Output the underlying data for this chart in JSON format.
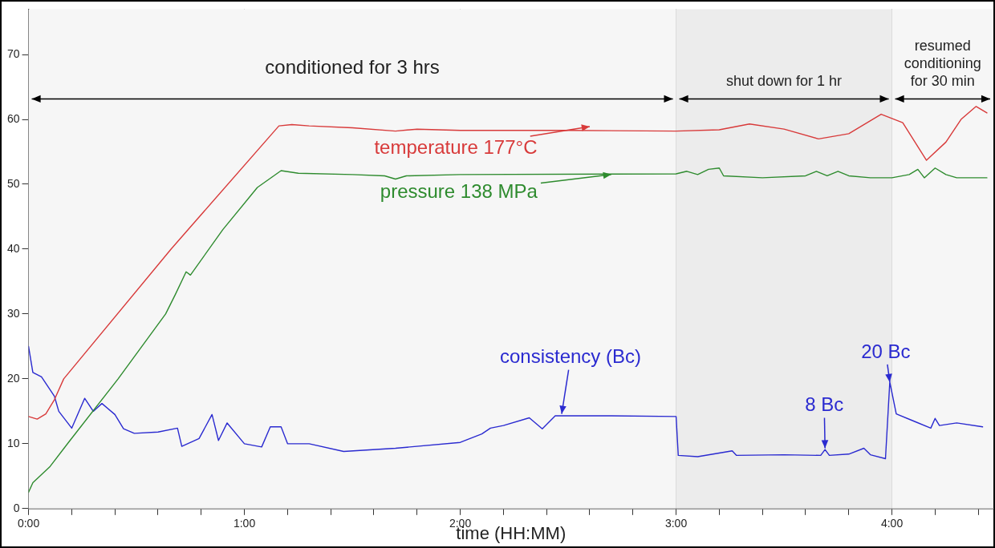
{
  "chart_data": {
    "type": "line",
    "xlabel": "time (HH:MM)",
    "xlim": [
      0,
      4.47
    ],
    "ylim": [
      0,
      77
    ],
    "xticks": [
      {
        "value": 0,
        "label": "0:00"
      },
      {
        "value": 0.2,
        "label": null
      },
      {
        "value": 0.4,
        "label": null
      },
      {
        "value": 0.6,
        "label": null
      },
      {
        "value": 0.8,
        "label": null
      },
      {
        "value": 1,
        "label": "1:00"
      },
      {
        "value": 1.2,
        "label": null
      },
      {
        "value": 1.4,
        "label": null
      },
      {
        "value": 1.6,
        "label": null
      },
      {
        "value": 1.8,
        "label": null
      },
      {
        "value": 2,
        "label": "2:00"
      },
      {
        "value": 2.2,
        "label": null
      },
      {
        "value": 2.4,
        "label": null
      },
      {
        "value": 2.6,
        "label": null
      },
      {
        "value": 2.8,
        "label": null
      },
      {
        "value": 3,
        "label": "3:00"
      },
      {
        "value": 3.2,
        "label": null
      },
      {
        "value": 3.4,
        "label": null
      },
      {
        "value": 3.6,
        "label": null
      },
      {
        "value": 3.8,
        "label": null
      },
      {
        "value": 4,
        "label": "4:00"
      },
      {
        "value": 4.2,
        "label": null
      },
      {
        "value": 4.4,
        "label": null
      }
    ],
    "yticks": [
      0,
      10,
      20,
      30,
      40,
      50,
      60,
      70
    ],
    "grid": true,
    "legend": false,
    "marker": "none",
    "line_style": "solid",
    "series": [
      {
        "color": "#d83a3a",
        "x": [
          0,
          0.04,
          0.08,
          0.12,
          0.163,
          0.66,
          1.16,
          1.22,
          1.3,
          1.5,
          1.7,
          1.8,
          2.0,
          2.5,
          3.0,
          3.2,
          3.34,
          3.5,
          3.66,
          3.8,
          3.95,
          4.05,
          4.16,
          4.25,
          4.32,
          4.39,
          4.44
        ],
        "values": [
          14.2,
          13.8,
          14.6,
          16.8,
          20,
          40,
          59,
          59.2,
          59,
          58.7,
          58.2,
          58.5,
          58.3,
          58.3,
          58.2,
          58.4,
          59.3,
          58.5,
          57,
          57.8,
          60.8,
          59.5,
          53.7,
          56.5,
          60,
          62,
          61
        ]
      },
      {
        "color": "#2e8b2e",
        "x": [
          0,
          0.02,
          0.1,
          0.185,
          0.415,
          0.635,
          0.68,
          0.73,
          0.75,
          0.9,
          1.06,
          1.17,
          1.25,
          1.5,
          1.65,
          1.7,
          1.75,
          2.0,
          3.0,
          3.05,
          3.1,
          3.15,
          3.2,
          3.22,
          3.4,
          3.6,
          3.65,
          3.7,
          3.75,
          3.8,
          3.9,
          4.0,
          4.08,
          4.12,
          4.15,
          4.2,
          4.25,
          4.3,
          4.44
        ],
        "values": [
          2.5,
          4,
          6.5,
          10.2,
          20,
          30,
          33,
          36.5,
          36,
          43,
          49.5,
          52.1,
          51.7,
          51.5,
          51.3,
          50.8,
          51.3,
          51.5,
          51.6,
          52,
          51.5,
          52.3,
          52.5,
          51.3,
          51,
          51.3,
          52,
          51.3,
          52,
          51.3,
          51,
          51,
          51.5,
          52.3,
          51,
          52.5,
          51.5,
          51,
          51
        ]
      },
      {
        "color": "#2a2ad0",
        "x": [
          0,
          0.02,
          0.06,
          0.12,
          0.14,
          0.2,
          0.26,
          0.3,
          0.34,
          0.4,
          0.44,
          0.49,
          0.6,
          0.69,
          0.71,
          0.79,
          0.85,
          0.88,
          0.92,
          1.0,
          1.08,
          1.12,
          1.17,
          1.2,
          1.3,
          1.46,
          1.7,
          2.0,
          2.1,
          2.14,
          2.2,
          2.32,
          2.38,
          2.44,
          2.7,
          3.0,
          3.01,
          3.1,
          3.26,
          3.28,
          3.5,
          3.67,
          3.69,
          3.71,
          3.8,
          3.87,
          3.9,
          3.97,
          3.99,
          4.02,
          4.1,
          4.18,
          4.2,
          4.22,
          4.3,
          4.42
        ],
        "values": [
          25,
          21,
          20.3,
          17.3,
          15,
          12.4,
          17,
          15,
          16.2,
          14.5,
          12.3,
          11.6,
          11.8,
          12.4,
          9.6,
          10.8,
          14.5,
          10.5,
          13.2,
          10,
          9.5,
          12.6,
          12.6,
          10,
          10,
          8.8,
          9.3,
          10.2,
          11.5,
          12.4,
          12.8,
          14,
          12.3,
          14.3,
          14.3,
          14.2,
          8.2,
          8,
          8.9,
          8.2,
          8.3,
          8.2,
          9.1,
          8.2,
          8.4,
          9.3,
          8.3,
          7.7,
          19.5,
          14.6,
          13.5,
          12.4,
          13.9,
          12.8,
          13.2,
          12.6
        ]
      }
    ],
    "bands": [
      {
        "axis": "x",
        "from": 0,
        "to": 3,
        "label": "conditioned for 3 hrs",
        "color": "#f6f6f6"
      },
      {
        "axis": "x",
        "from": 3,
        "to": 4,
        "label": "shut down for 1 hr",
        "color": "#ececec"
      },
      {
        "axis": "x",
        "from": 4,
        "to": 4.47,
        "label": "resumed conditioning for 30 min",
        "color": "#f6f6f6"
      }
    ],
    "annotations": [
      {
        "text": "temperature 177°C",
        "x": 2.6,
        "y": 58.9
      },
      {
        "text": "pressure 138 MPa",
        "x": 2.7,
        "y": 51.5
      },
      {
        "text": "consistency (Bc)",
        "x": 2.47,
        "y": 14.6
      },
      {
        "text": "8 Bc",
        "x": 3.69,
        "y": 9.3
      },
      {
        "text": "20 Bc",
        "x": 3.99,
        "y": 19.5
      }
    ]
  }
}
